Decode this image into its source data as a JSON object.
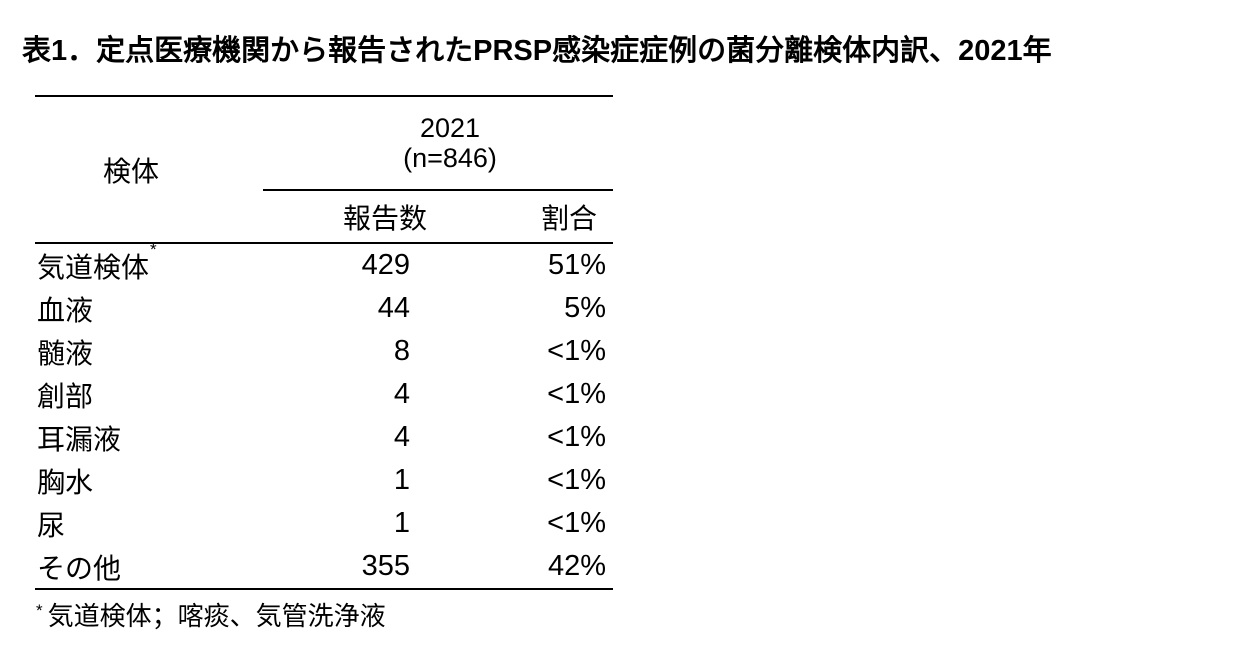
{
  "title": "表1．定点医療機関から報告されたPRSP感染症症例の菌分離検体内訳、2021年",
  "table": {
    "specimen_header": "検体",
    "year_header": "2021",
    "n_label": "(n=846)",
    "count_header": "報告数",
    "pct_header": "割合",
    "rows": [
      {
        "label": "気道検体",
        "note": "*",
        "count": "429",
        "pct": "51%"
      },
      {
        "label": "血液",
        "note": "",
        "count": "44",
        "pct": "5%"
      },
      {
        "label": "髄液",
        "note": "",
        "count": "8",
        "pct": "<1%"
      },
      {
        "label": "創部",
        "note": "",
        "count": "4",
        "pct": "<1%"
      },
      {
        "label": "耳漏液",
        "note": "",
        "count": "4",
        "pct": "<1%"
      },
      {
        "label": "胸水",
        "note": "",
        "count": "1",
        "pct": "<1%"
      },
      {
        "label": "尿",
        "note": "",
        "count": "1",
        "pct": "<1%"
      },
      {
        "label": "その他",
        "note": "",
        "count": "355",
        "pct": "42%"
      }
    ]
  },
  "footnote": {
    "marker": "*",
    "text": "気道検体；喀痰、気管洗浄液"
  },
  "colors": {
    "text": "#000000",
    "background": "#ffffff",
    "rule": "#000000"
  }
}
